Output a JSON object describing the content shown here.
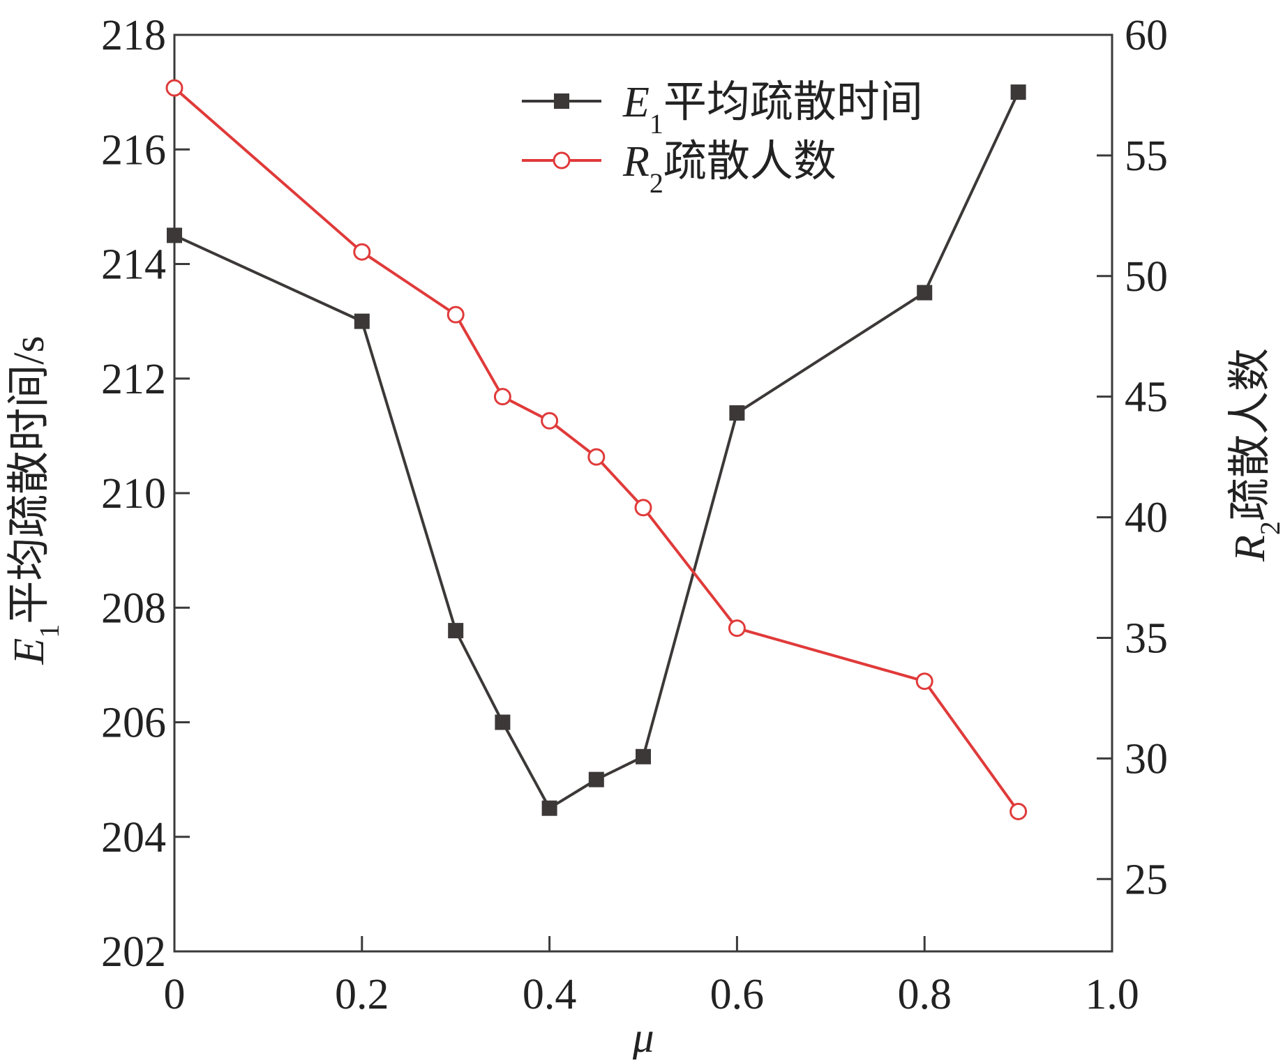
{
  "chart_data": {
    "type": "line",
    "x_axis": {
      "label": "μ",
      "range": [
        0,
        1.0
      ],
      "ticks": [
        "0",
        "0.2",
        "0.4",
        "0.6",
        "0.8",
        "1.0"
      ]
    },
    "y_axis_left": {
      "label_var": "E",
      "label_sub": "1",
      "label_rest": "平均疏散时间/s",
      "range": [
        202,
        218
      ],
      "ticks": [
        "202",
        "204",
        "206",
        "208",
        "210",
        "212",
        "214",
        "216",
        "218"
      ]
    },
    "y_axis_right": {
      "label_var": "R",
      "label_sub": "2",
      "label_rest": "疏散人数",
      "range": [
        22,
        60
      ],
      "ticks": [
        "25",
        "30",
        "35",
        "40",
        "45",
        "50",
        "55",
        "60"
      ]
    },
    "x": [
      0,
      0.2,
      0.3,
      0.35,
      0.4,
      0.45,
      0.5,
      0.6,
      0.8,
      0.9
    ],
    "series": [
      {
        "label_var": "E",
        "label_sub": "1",
        "label_rest": "平均疏散时间",
        "axis": "left",
        "marker": "filled-square",
        "color": "#3d3838",
        "values": [
          214.5,
          213.0,
          207.6,
          206.0,
          204.5,
          205.0,
          205.4,
          211.4,
          213.5,
          217.0
        ]
      },
      {
        "label_var": "R",
        "label_sub": "2",
        "label_rest": "疏散人数",
        "axis": "right",
        "marker": "open-circle",
        "color": "#e03a3a",
        "values": [
          57.8,
          51.0,
          48.4,
          45.0,
          44.0,
          42.5,
          40.4,
          35.4,
          33.2,
          27.8
        ]
      }
    ],
    "legend_position": "top-right",
    "grid": false
  }
}
